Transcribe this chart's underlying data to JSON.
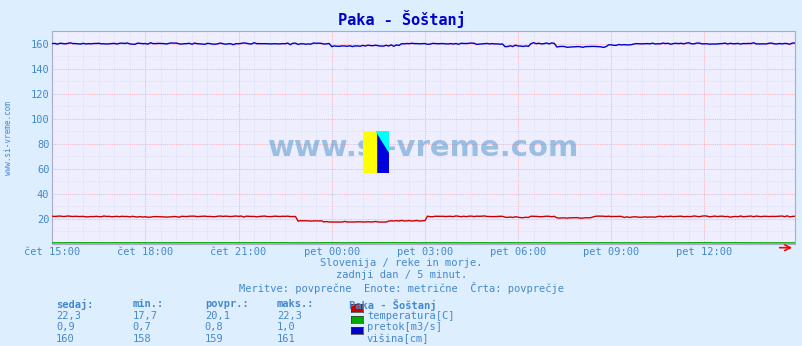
{
  "title": "Paka - Šoštanj",
  "bg_color": "#ddeeff",
  "plot_bg_color": "#eeeeff",
  "grid_color_major": "#ffaaaa",
  "grid_color_minor": "#ccccee",
  "x_labels": [
    "čet 15:00",
    "čet 18:00",
    "čet 21:00",
    "pet 00:00",
    "pet 03:00",
    "pet 06:00",
    "pet 09:00",
    "pet 12:00"
  ],
  "x_ticks": [
    0,
    36,
    72,
    108,
    144,
    180,
    216,
    252
  ],
  "n_points": 288,
  "ylim": [
    0,
    170
  ],
  "yticks": [
    20,
    40,
    60,
    80,
    100,
    120,
    140,
    160
  ],
  "temp_color": "#cc0000",
  "pretok_color": "#00aa00",
  "visina_color": "#0000cc",
  "watermark_color": "#5599cc",
  "watermark": "www.si-vreme.com",
  "subtitle1": "Slovenija / reke in morje.",
  "subtitle2": "zadnji dan / 5 minut.",
  "subtitle3": "Meritve: povprečne  Enote: metrične  Črta: povprečje",
  "legend_title": "Paka - Šoštanj",
  "label_color": "#4488cc",
  "sidebar_text": "www.si-vreme.com",
  "col_headers": [
    "sedaj:",
    "min.:",
    "povpr.:",
    "maks.:"
  ],
  "rows": [
    [
      "22,3",
      "17,7",
      "20,1",
      "22,3",
      "#cc0000",
      "temperatura[C]"
    ],
    [
      "0,9",
      "0,7",
      "0,8",
      "1,0",
      "#00aa00",
      "pretok[m3/s]"
    ],
    [
      "160",
      "158",
      "159",
      "161",
      "#0000cc",
      "višina[cm]"
    ]
  ]
}
